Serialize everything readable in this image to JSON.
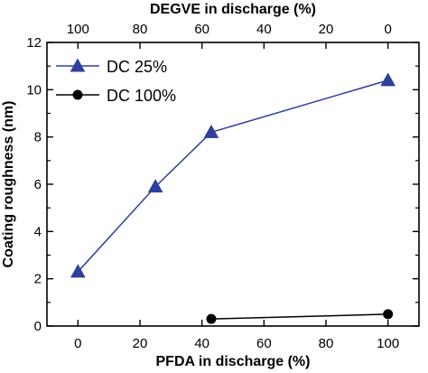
{
  "chart_data": {
    "type": "line",
    "xlabel": "PFDA in discharge (%)",
    "x2label": "DEGVE in discharge (%)",
    "ylabel": "Coating roughness (nm)",
    "xlim": [
      -10,
      110
    ],
    "ylim": [
      0,
      12
    ],
    "xticks": [
      0,
      20,
      40,
      60,
      80,
      100
    ],
    "xtick_labels": [
      "0",
      "20",
      "40",
      "60",
      "80",
      "100"
    ],
    "x2ticks": [
      0,
      20,
      40,
      60,
      80,
      100
    ],
    "x2tick_labels": [
      "100",
      "80",
      "60",
      "40",
      "20",
      "0"
    ],
    "yticks": [
      0,
      2,
      4,
      6,
      8,
      10,
      12
    ],
    "ytick_labels": [
      "0",
      "2",
      "4",
      "6",
      "8",
      "10",
      "12"
    ],
    "grid": false,
    "legend_position": "top-left",
    "series": [
      {
        "name": "DC 25%",
        "marker": "triangle",
        "color": "#2e3f9e",
        "x": [
          0,
          25,
          43,
          100
        ],
        "y": [
          2.3,
          5.9,
          8.2,
          10.4
        ]
      },
      {
        "name": "DC 100%",
        "marker": "circle",
        "color": "#000000",
        "x": [
          43,
          100
        ],
        "y": [
          0.3,
          0.5
        ]
      }
    ]
  }
}
